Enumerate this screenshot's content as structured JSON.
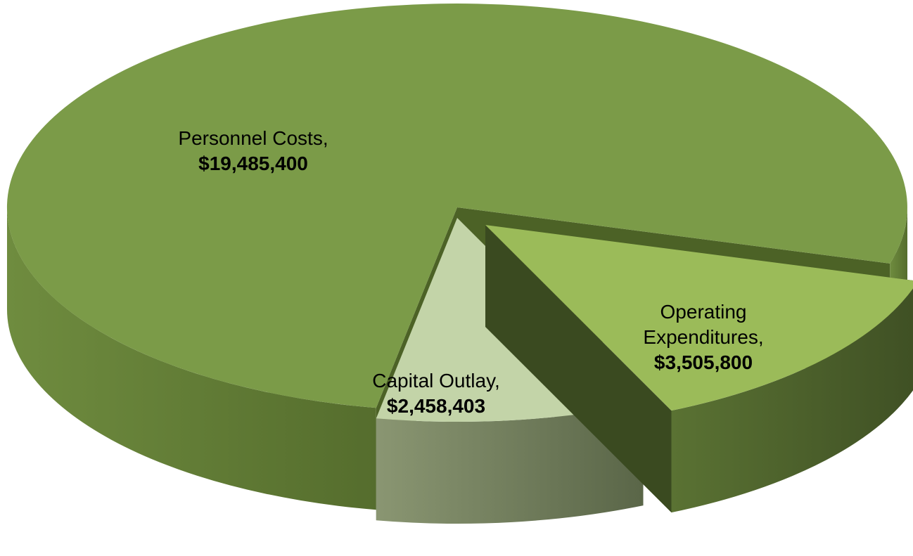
{
  "chart_data": {
    "type": "pie",
    "categories": [
      "Personnel Costs,",
      "Operating Expenditures,",
      "Capital Outlay,"
    ],
    "values": [
      19485400,
      3505800,
      2458403
    ],
    "value_labels": [
      "$19,485,400",
      "$3,505,800",
      "$2,458,403"
    ],
    "colors": [
      "#7b9b48",
      "#9bbb59",
      "#c3d4a8"
    ]
  }
}
